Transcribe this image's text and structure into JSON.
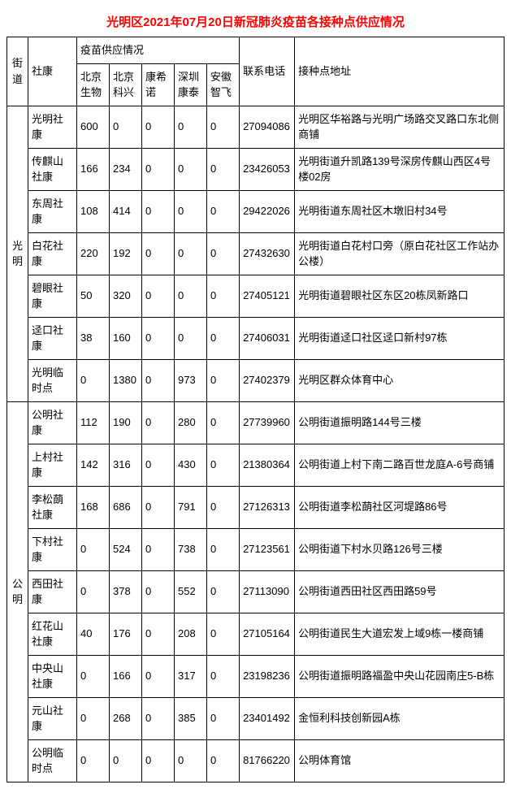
{
  "title": "光明区2021年07月20日新冠肺炎疫苗各接种点供应情况",
  "title_color": "#ff0000",
  "headers": {
    "street": "街道",
    "clinic": "社康",
    "supply_group": "疫苗供应情况",
    "v1": "北京生物",
    "v2": "北京科兴",
    "v3": "康希诺",
    "v4": "深圳康泰",
    "v5": "安徽智飞",
    "phone": "联系电话",
    "address": "接种点地址"
  },
  "groups": [
    {
      "street": "光明",
      "rows": [
        {
          "clinic": "光明社康",
          "v": [
            "600",
            "0",
            "0",
            "0",
            "0"
          ],
          "phone": "27094086",
          "address": "光明区华裕路与光明广场路交叉路口东北侧商铺"
        },
        {
          "clinic": "传麒山社康",
          "v": [
            "166",
            "234",
            "0",
            "0",
            "0"
          ],
          "phone": "23426053",
          "address": "光明街道升凯路139号深房传麒山西区4号楼02房"
        },
        {
          "clinic": "东周社康",
          "v": [
            "108",
            "414",
            "0",
            "0",
            "0"
          ],
          "phone": "29422026",
          "address": "光明街道东周社区木墩旧村34号"
        },
        {
          "clinic": "白花社康",
          "v": [
            "220",
            "192",
            "0",
            "0",
            "0"
          ],
          "phone": "27432630",
          "address": "光明街道白花村口旁（原白花社区工作站办公楼）"
        },
        {
          "clinic": "碧眼社康",
          "v": [
            "50",
            "320",
            "0",
            "0",
            "0"
          ],
          "phone": "27405121",
          "address": "光明街道碧眼社区东区20栋凤新路口"
        },
        {
          "clinic": "迳口社康",
          "v": [
            "38",
            "160",
            "0",
            "0",
            "0"
          ],
          "phone": "27406031",
          "address": "光明街道迳口社区迳口新村97栋"
        },
        {
          "clinic": "光明临时点",
          "v": [
            "0",
            "1380",
            "0",
            "973",
            "0"
          ],
          "phone": "27402379",
          "address": "光明区群众体育中心"
        }
      ]
    },
    {
      "street": "公明",
      "rows": [
        {
          "clinic": "公明社康",
          "v": [
            "112",
            "190",
            "0",
            "280",
            "0"
          ],
          "phone": "27739960",
          "address": "公明街道振明路144号三楼"
        },
        {
          "clinic": "上村社康",
          "v": [
            "142",
            "316",
            "0",
            "430",
            "0"
          ],
          "phone": "21380364",
          "address": "公明街道上村下南二路百世龙庭A-6号商铺"
        },
        {
          "clinic": "李松蓢社康",
          "v": [
            "168",
            "686",
            "0",
            "791",
            "0"
          ],
          "phone": "27126313",
          "address": "公明街道李松蓢社区河堤路86号"
        },
        {
          "clinic": "下村社康",
          "v": [
            "0",
            "524",
            "0",
            "738",
            "0"
          ],
          "phone": "27123561",
          "address": "公明街道下村水贝路126号三楼"
        },
        {
          "clinic": "西田社康",
          "v": [
            "0",
            "378",
            "0",
            "552",
            "0"
          ],
          "phone": "27113090",
          "address": "公明街道西田社区西田路59号"
        },
        {
          "clinic": "红花山社康",
          "v": [
            "40",
            "176",
            "0",
            "208",
            "0"
          ],
          "phone": "27105164",
          "address": "公明街道民生大道宏发上域9栋一楼商铺"
        },
        {
          "clinic": "中央山社康",
          "v": [
            "0",
            "166",
            "0",
            "317",
            "0"
          ],
          "phone": "23198236",
          "address": "公明街道振明路福盈中央山花园南庄5-B栋"
        },
        {
          "clinic": "元山社康",
          "v": [
            "0",
            "268",
            "0",
            "385",
            "0"
          ],
          "phone": "23401492",
          "address": "金恒利科技创新园A栋"
        },
        {
          "clinic": "公明临时点",
          "v": [
            "0",
            "0",
            "0",
            "0",
            "0"
          ],
          "phone": "81766220",
          "address": "公明体育馆"
        }
      ]
    }
  ]
}
